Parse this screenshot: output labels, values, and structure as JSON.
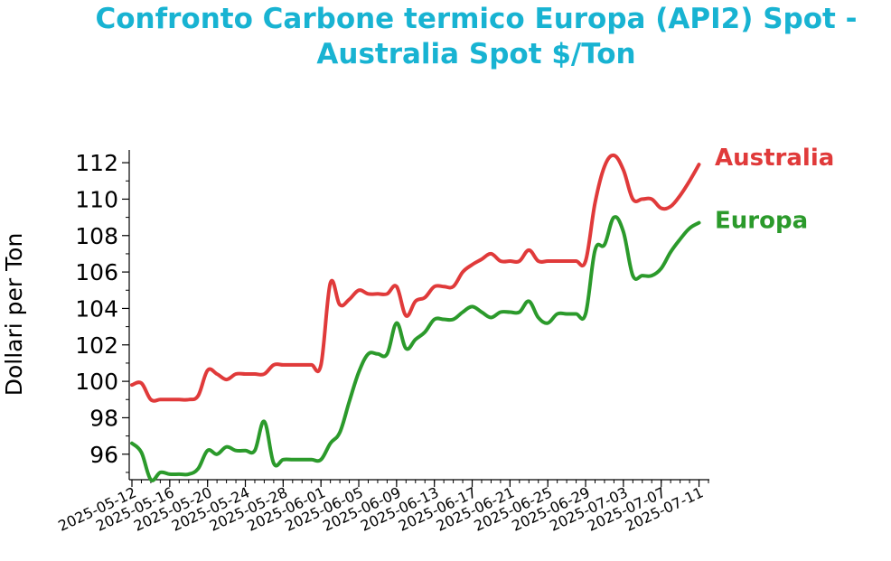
{
  "chart_data": {
    "type": "line",
    "title": "Confronto Carbone termico Europa (API2) Spot - Australia Spot $/Ton",
    "xlabel": "",
    "ylabel": "Dollari per Ton",
    "ylim": [
      94.6,
      112.6
    ],
    "yticks": [
      96,
      98,
      100,
      102,
      104,
      106,
      108,
      110,
      112
    ],
    "xticks": [
      "2025-05-12",
      "2025-05-16",
      "2025-05-20",
      "2025-05-24",
      "2025-05-28",
      "2025-06-01",
      "2025-06-05",
      "2025-06-09",
      "2025-06-13",
      "2025-06-17",
      "2025-06-21",
      "2025-06-25",
      "2025-06-29",
      "2025-07-03",
      "2025-07-07",
      "2025-07-11"
    ],
    "xlim": [
      "2025-05-12",
      "2025-07-12"
    ],
    "grid": false,
    "series": [
      {
        "name": "Australia",
        "color": "#e03a3a",
        "x": [
          "2025-05-12",
          "2025-05-13",
          "2025-05-14",
          "2025-05-15",
          "2025-05-16",
          "2025-05-17",
          "2025-05-18",
          "2025-05-19",
          "2025-05-20",
          "2025-05-21",
          "2025-05-22",
          "2025-05-23",
          "2025-05-24",
          "2025-05-25",
          "2025-05-26",
          "2025-05-27",
          "2025-05-28",
          "2025-05-29",
          "2025-05-30",
          "2025-05-31",
          "2025-06-01",
          "2025-06-02",
          "2025-06-03",
          "2025-06-04",
          "2025-06-05",
          "2025-06-06",
          "2025-06-07",
          "2025-06-08",
          "2025-06-09",
          "2025-06-10",
          "2025-06-11",
          "2025-06-12",
          "2025-06-13",
          "2025-06-14",
          "2025-06-15",
          "2025-06-16",
          "2025-06-17",
          "2025-06-18",
          "2025-06-19",
          "2025-06-20",
          "2025-06-21",
          "2025-06-22",
          "2025-06-23",
          "2025-06-24",
          "2025-06-25",
          "2025-06-26",
          "2025-06-27",
          "2025-06-28",
          "2025-06-29",
          "2025-06-30",
          "2025-07-01",
          "2025-07-02",
          "2025-07-03",
          "2025-07-04",
          "2025-07-05",
          "2025-07-06",
          "2025-07-07",
          "2025-07-08",
          "2025-07-09",
          "2025-07-10",
          "2025-07-11"
        ],
        "values": [
          99.8,
          99.9,
          99.0,
          99.0,
          99.0,
          99.0,
          99.0,
          99.2,
          100.6,
          100.4,
          100.1,
          100.4,
          100.4,
          100.4,
          100.4,
          100.9,
          100.9,
          100.9,
          100.9,
          100.9,
          100.9,
          105.4,
          104.2,
          104.5,
          105.0,
          104.8,
          104.8,
          104.8,
          105.2,
          103.6,
          104.4,
          104.6,
          105.2,
          105.2,
          105.2,
          106.0,
          106.4,
          106.7,
          107.0,
          106.6,
          106.6,
          106.6,
          107.2,
          106.6,
          106.6,
          106.6,
          106.6,
          106.6,
          106.6,
          109.8,
          111.8,
          112.4,
          111.6,
          110.0,
          110.0,
          110.0,
          109.5,
          109.6,
          110.2,
          111.0,
          111.9
        ]
      },
      {
        "name": "Europa",
        "color": "#2b9a2b",
        "x": [
          "2025-05-12",
          "2025-05-13",
          "2025-05-14",
          "2025-05-15",
          "2025-05-16",
          "2025-05-17",
          "2025-05-18",
          "2025-05-19",
          "2025-05-20",
          "2025-05-21",
          "2025-05-22",
          "2025-05-23",
          "2025-05-24",
          "2025-05-25",
          "2025-05-26",
          "2025-05-27",
          "2025-05-28",
          "2025-05-29",
          "2025-05-30",
          "2025-05-31",
          "2025-06-01",
          "2025-06-02",
          "2025-06-03",
          "2025-06-04",
          "2025-06-05",
          "2025-06-06",
          "2025-06-07",
          "2025-06-08",
          "2025-06-09",
          "2025-06-10",
          "2025-06-11",
          "2025-06-12",
          "2025-06-13",
          "2025-06-14",
          "2025-06-15",
          "2025-06-16",
          "2025-06-17",
          "2025-06-18",
          "2025-06-19",
          "2025-06-20",
          "2025-06-21",
          "2025-06-22",
          "2025-06-23",
          "2025-06-24",
          "2025-06-25",
          "2025-06-26",
          "2025-06-27",
          "2025-06-28",
          "2025-06-29",
          "2025-06-30",
          "2025-07-01",
          "2025-07-02",
          "2025-07-03",
          "2025-07-04",
          "2025-07-05",
          "2025-07-06",
          "2025-07-07",
          "2025-07-08",
          "2025-07-09",
          "2025-07-10",
          "2025-07-11"
        ],
        "values": [
          96.6,
          96.1,
          94.6,
          95.0,
          94.9,
          94.9,
          94.9,
          95.2,
          96.2,
          96.0,
          96.4,
          96.2,
          96.2,
          96.2,
          97.8,
          95.5,
          95.7,
          95.7,
          95.7,
          95.7,
          95.7,
          96.6,
          97.2,
          98.9,
          100.5,
          101.5,
          101.5,
          101.5,
          103.2,
          101.8,
          102.3,
          102.7,
          103.4,
          103.4,
          103.4,
          103.8,
          104.1,
          103.8,
          103.5,
          103.8,
          103.8,
          103.8,
          104.4,
          103.5,
          103.2,
          103.7,
          103.7,
          103.7,
          103.7,
          107.2,
          107.5,
          109.0,
          108.2,
          105.8,
          105.8,
          105.8,
          106.2,
          107.1,
          107.8,
          108.4,
          108.7
        ]
      }
    ]
  }
}
